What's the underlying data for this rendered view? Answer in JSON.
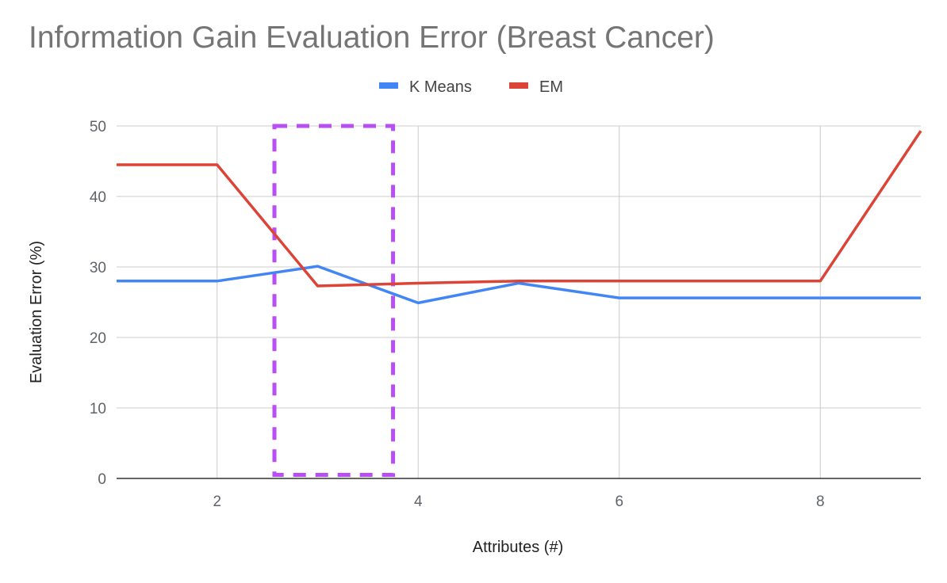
{
  "chart_data": {
    "type": "line",
    "title": "Information Gain Evaluation Error (Breast Cancer)",
    "xlabel": "Attributes (#)",
    "ylabel": "Evaluation Error (%)",
    "xlim": [
      1,
      9
    ],
    "ylim": [
      0,
      50
    ],
    "x_ticks": [
      2,
      4,
      6,
      8
    ],
    "y_ticks": [
      0,
      10,
      20,
      30,
      40,
      50
    ],
    "grid": true,
    "legend_position": "top",
    "x": [
      1,
      2,
      3,
      4,
      5,
      6,
      7,
      8,
      9
    ],
    "series": [
      {
        "name": "K Means",
        "color": "#4285f4",
        "values": [
          28,
          28,
          30.1,
          24.9,
          27.7,
          25.6,
          25.6,
          25.6,
          25.6
        ]
      },
      {
        "name": "EM",
        "color": "#db4437",
        "values": [
          44.5,
          44.5,
          27.3,
          27.7,
          28,
          28,
          28,
          28,
          49.3
        ]
      }
    ],
    "annotations": [
      {
        "type": "dashed-box",
        "color": "#b84ef3",
        "x_range": [
          2.57,
          3.75
        ],
        "y_range": [
          0.5,
          50
        ]
      }
    ]
  }
}
